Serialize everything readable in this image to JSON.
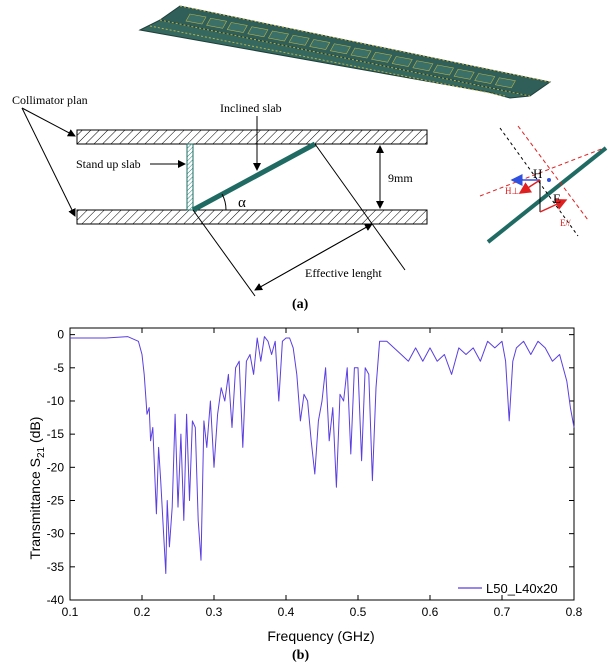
{
  "colors": {
    "curve": "#5b3fe0",
    "slab": "#1f6b63",
    "pcb": "#2f5f58",
    "pcb_trace": "#b8b24a",
    "dashed_red": "#e02020",
    "arrow_red": "#e02020",
    "arrow_blue": "#3050e0"
  },
  "diagram_a": {
    "labels": {
      "collimator": "Collimator plan",
      "inclined": "Inclined slab",
      "standup": "Stand up slab",
      "gap": "9mm",
      "angle": "α",
      "effective": "Effective lenght",
      "H": "H",
      "E": "E",
      "H_perp": "H⊥",
      "E_par": "E//"
    },
    "panel_label": "(a)"
  },
  "panel_label_b": "(b)",
  "chart_data": {
    "type": "line",
    "xlabel": "Frequency (GHz)",
    "ylabel": "Transmittance S21 (dB)",
    "ylabel_main": "Transmittance S",
    "ylabel_sub": "21",
    "ylabel_tail": " (dB)",
    "xlim": [
      0.1,
      0.8
    ],
    "ylim": [
      -40,
      1
    ],
    "xticks": [
      0.1,
      0.2,
      0.3,
      0.4,
      0.5,
      0.6,
      0.7,
      0.8
    ],
    "xtick_labels": [
      "0.1",
      "0.2",
      "0.3",
      "0.4",
      "0.5",
      "0.6",
      "0.7",
      "0.8"
    ],
    "yticks": [
      0,
      -5,
      -10,
      -15,
      -20,
      -25,
      -30,
      -35,
      -40
    ],
    "ytick_labels": [
      "0",
      "-5",
      "-10",
      "-15",
      "-20",
      "-25",
      "-30",
      "-35",
      "-40"
    ],
    "legend_position": "bottom-right",
    "grid": false,
    "series": [
      {
        "name": "L50_L40x20",
        "x": [
          0.1,
          0.15,
          0.18,
          0.195,
          0.2,
          0.203,
          0.207,
          0.21,
          0.212,
          0.215,
          0.22,
          0.223,
          0.226,
          0.23,
          0.233,
          0.235,
          0.238,
          0.242,
          0.246,
          0.25,
          0.254,
          0.258,
          0.262,
          0.266,
          0.27,
          0.274,
          0.278,
          0.282,
          0.286,
          0.29,
          0.295,
          0.3,
          0.305,
          0.31,
          0.315,
          0.32,
          0.325,
          0.33,
          0.335,
          0.34,
          0.345,
          0.35,
          0.355,
          0.36,
          0.365,
          0.37,
          0.375,
          0.38,
          0.385,
          0.39,
          0.395,
          0.4,
          0.405,
          0.41,
          0.415,
          0.42,
          0.425,
          0.43,
          0.435,
          0.44,
          0.445,
          0.45,
          0.455,
          0.46,
          0.465,
          0.47,
          0.475,
          0.48,
          0.485,
          0.49,
          0.495,
          0.5,
          0.505,
          0.51,
          0.515,
          0.52,
          0.525,
          0.53,
          0.54,
          0.55,
          0.56,
          0.57,
          0.58,
          0.59,
          0.6,
          0.61,
          0.62,
          0.63,
          0.64,
          0.65,
          0.66,
          0.67,
          0.68,
          0.69,
          0.7,
          0.705,
          0.71,
          0.715,
          0.72,
          0.73,
          0.74,
          0.75,
          0.76,
          0.77,
          0.78,
          0.79,
          0.795,
          0.8
        ],
        "y": [
          -0.5,
          -0.5,
          -0.3,
          -1,
          -3,
          -6,
          -12,
          -11,
          -16,
          -14,
          -27,
          -17,
          -22,
          -30,
          -36,
          -25,
          -32,
          -26,
          -12,
          -26,
          -15,
          -28,
          -12,
          -25,
          -13,
          -14,
          -28,
          -34,
          -13,
          -17,
          -10,
          -20,
          -12,
          -8,
          -10,
          -6,
          -14,
          -5,
          -4,
          -17,
          -4,
          -3,
          -6,
          -0.5,
          -4,
          -0.3,
          -1,
          -3,
          -1,
          -10,
          -1,
          -0.5,
          -0.5,
          -2,
          -6,
          -13,
          -9,
          -10,
          -16,
          -21,
          -13,
          -10,
          -5,
          -16,
          -11,
          -23,
          -9,
          -10,
          -5,
          -18,
          -5,
          -5,
          -19,
          -5,
          -6,
          -22,
          -8,
          -1,
          -1,
          -2,
          -3,
          -4,
          -2,
          -4,
          -2,
          -4,
          -3,
          -6,
          -2,
          -3,
          -2,
          -4,
          -1,
          -2,
          -1,
          -4,
          -13,
          -4,
          -2,
          -1,
          -3,
          -1,
          -2,
          -4,
          -3,
          -7,
          -11,
          -14
        ]
      }
    ]
  }
}
